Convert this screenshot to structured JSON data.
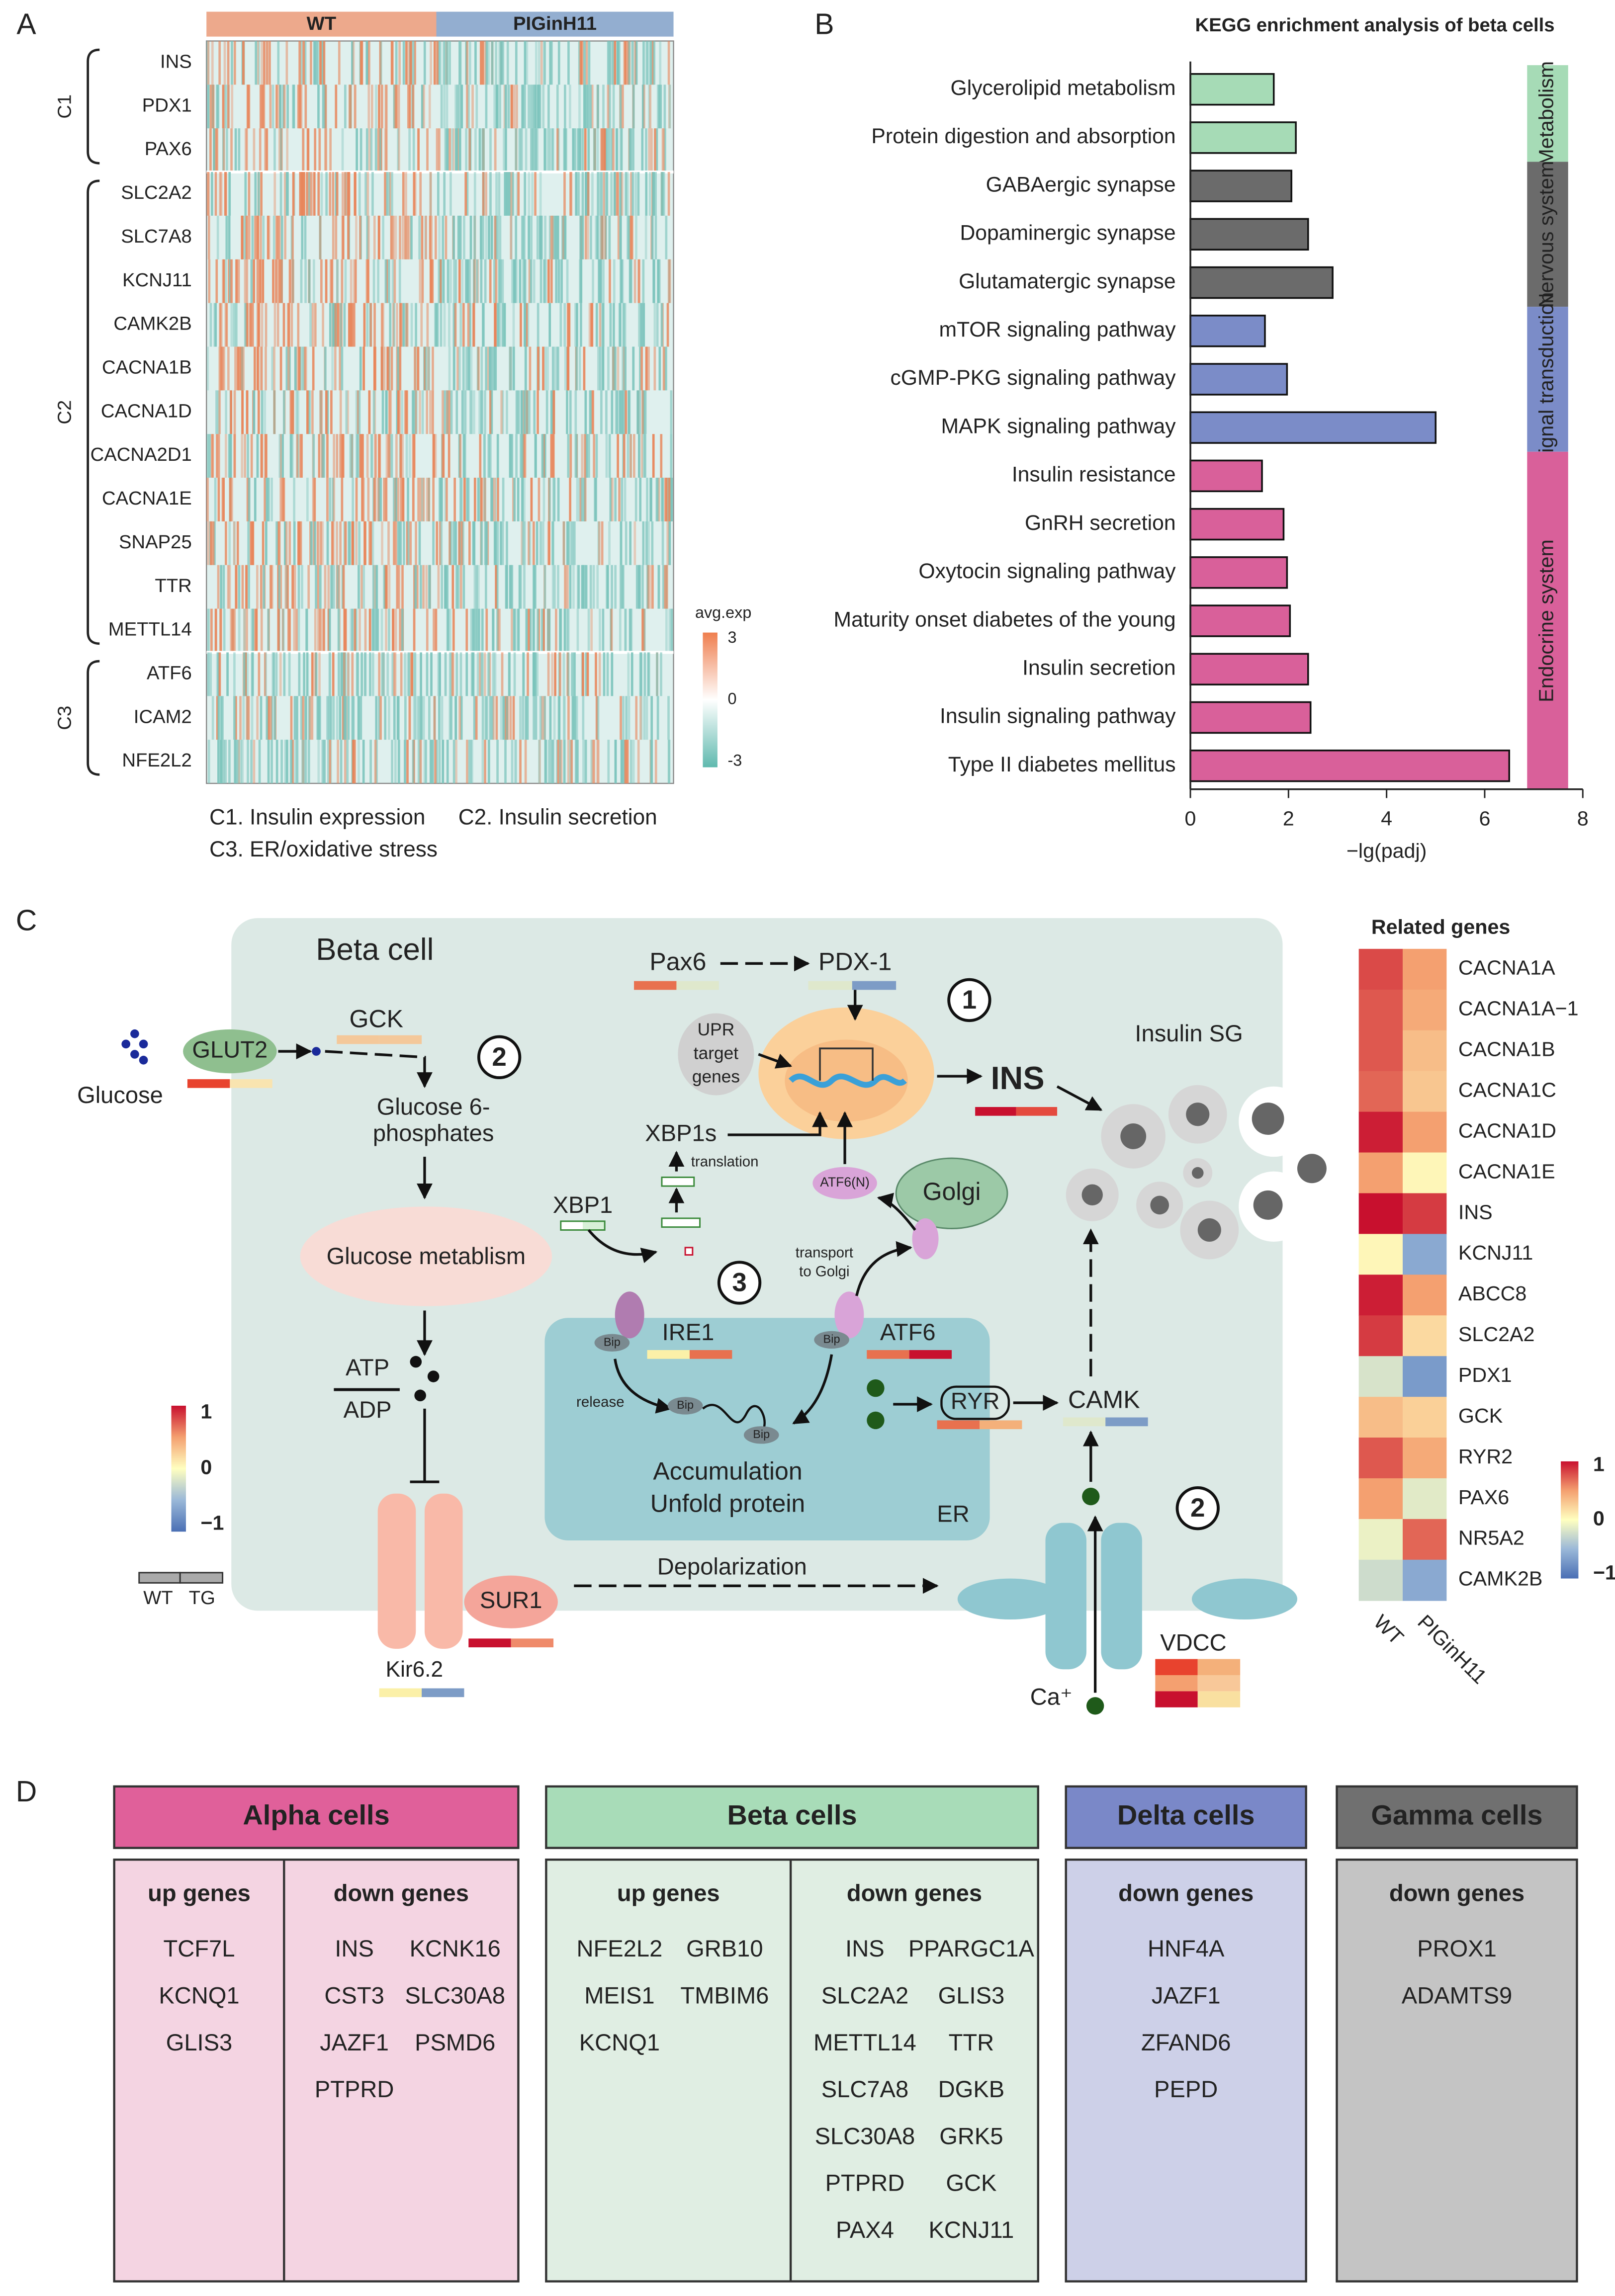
{
  "panel_a": {
    "label": "A",
    "groups": [
      {
        "name": "WT",
        "color": "#eda98c"
      },
      {
        "name": "PIGinH11",
        "color": "#93aed0"
      }
    ],
    "clusters": [
      {
        "name": "C1",
        "genes": [
          "INS",
          "PDX1",
          "PAX6"
        ]
      },
      {
        "name": "C2",
        "genes": [
          "SLC2A2",
          "SLC7A8",
          "KCNJ11",
          "CAMK2B",
          "CACNA1B",
          "CACNA1D",
          "CACNA2D1",
          "CACNA1E",
          "SNAP25",
          "TTR",
          "METTL14"
        ]
      },
      {
        "name": "C3",
        "genes": [
          "ATF6",
          "ICAM2",
          "NFE2L2"
        ]
      }
    ],
    "legend": {
      "title": "avg.exp",
      "ticks": [
        3,
        0,
        -3
      ]
    },
    "notes": [
      "C1. Insulin expression",
      "C2. Insulin secretion",
      "C3. ER/oxidative stress"
    ]
  },
  "chart_data": {
    "type": "bar",
    "orientation": "horizontal",
    "label": "B",
    "title": "KEGG enrichment analysis of beta cells",
    "categories": [
      "Glycerolipid metabolism",
      "Protein digestion and absorption",
      "GABAergic synapse",
      "Dopaminergic synapse",
      "Glutamatergic synapse",
      "mTOR signaling pathway",
      "cGMP-PKG signaling pathway",
      "MAPK signaling pathway",
      "Insulin resistance",
      "GnRH secretion",
      "Oxytocin signaling pathway",
      "Maturity onset diabetes of the young",
      "Insulin secretion",
      "Insulin signaling pathway",
      "Type II diabetes mellitus"
    ],
    "series": [
      {
        "name": "Metabolism",
        "color": "#a6dbb6",
        "values": [
          1.7,
          2.15,
          null,
          null,
          null,
          null,
          null,
          null,
          null,
          null,
          null,
          null,
          null,
          null,
          null
        ]
      },
      {
        "name": "Nervous system",
        "color": "#6b6b6b",
        "values": [
          null,
          null,
          2.06,
          2.4,
          2.9,
          null,
          null,
          null,
          null,
          null,
          null,
          null,
          null,
          null,
          null
        ]
      },
      {
        "name": "Signal transduction",
        "color": "#7b8cc8",
        "values": [
          null,
          null,
          null,
          null,
          null,
          1.52,
          1.97,
          5.0,
          null,
          null,
          null,
          null,
          null,
          null,
          null
        ]
      },
      {
        "name": "Endocrine system",
        "color": "#d9609a",
        "values": [
          null,
          null,
          null,
          null,
          null,
          null,
          null,
          null,
          1.46,
          1.9,
          1.97,
          2.03,
          2.4,
          2.45,
          6.5
        ]
      }
    ],
    "x_label": "−lg(padj)",
    "xlim": [
      0,
      8
    ],
    "xticks": [
      0,
      2,
      4,
      6,
      8
    ]
  },
  "panel_c": {
    "label": "C",
    "cell": "Beta cell",
    "glucose": "Glucose",
    "glut2": "GLUT2",
    "gck": "GCK",
    "g6p": [
      "Glucose 6-",
      "phosphates"
    ],
    "metabolism": "Glucose metablism",
    "atp": "ATP",
    "adp": "ADP",
    "kir": "Kir6.2",
    "sur1": "SUR1",
    "depolarization": "Depolarization",
    "vdcc": "VDCC",
    "ca": "Ca⁺",
    "pax6": "Pax6",
    "pdx1": "PDX-1",
    "upr": [
      "UPR",
      "target",
      "genes"
    ],
    "ins": "INS",
    "sg": "Insulin SG",
    "xbp1s": "XBP1s",
    "translation": "translation",
    "xbp1": "XBP1",
    "atf6n": "ATF6(N)",
    "golgi": "Golgi",
    "transport": [
      "transport",
      "to Golgi"
    ],
    "ire1": "IRE1",
    "atf6": "ATF6",
    "bip": "Bip",
    "release": "release",
    "accumulation": [
      "Accumulation",
      "Unfold protein"
    ],
    "er": "ER",
    "ryr": "RYR",
    "camk": "CAMK",
    "steps": [
      "1",
      "2",
      "3",
      "2"
    ],
    "legend": {
      "ticks": [
        1,
        0,
        {
          "value": -1,
          "label": "−1"
        }
      ],
      "groups": [
        "WT",
        "TG"
      ]
    },
    "related": {
      "title": "Related genes",
      "columns": [
        "WT",
        "PIGinH11"
      ],
      "genes": [
        "CACNA1A",
        "CACNA1A−1",
        "CACNA1B",
        "CACNA1C",
        "CACNA1D",
        "CACNA1E",
        "INS",
        "KCNJ11",
        "ABCC8",
        "SLC2A2",
        "PDX1",
        "GCK",
        "RYR2",
        "PAX6",
        "NR5A2",
        "CAMK2B"
      ],
      "values": [
        [
          0.8,
          0.5
        ],
        [
          0.75,
          0.45
        ],
        [
          0.75,
          0.35
        ],
        [
          0.7,
          0.3
        ],
        [
          0.95,
          0.5
        ],
        [
          0.5,
          0.05
        ],
        [
          1,
          0.85
        ],
        [
          0.05,
          -0.6
        ],
        [
          0.95,
          0.5
        ],
        [
          0.85,
          0.2
        ],
        [
          -0.2,
          -0.7
        ],
        [
          0.35,
          0.25
        ],
        [
          0.75,
          0.45
        ],
        [
          0.5,
          -0.15
        ],
        [
          -0.1,
          0.7
        ],
        [
          -0.25,
          -0.6
        ]
      ],
      "ticks": [
        1,
        0,
        {
          "value": -1,
          "label": "−1"
        }
      ]
    }
  },
  "panel_d": {
    "label": "D",
    "cards": [
      {
        "title": "Alpha cells",
        "color": "#e0609a",
        "body": "#f4d4e2",
        "columns": [
          {
            "heading": "up genes",
            "genes": [
              "TCF7L",
              "KCNQ1",
              "GLIS3"
            ]
          },
          {
            "heading": "down genes",
            "genes": [
              "INS",
              "KCNK16",
              "CST3",
              "SLC30A8",
              "JAZF1",
              "PSMD6",
              "PTPRD"
            ]
          }
        ]
      },
      {
        "title": "Beta cells",
        "color": "#a8dcb8",
        "body": "#e0eee3",
        "columns": [
          {
            "heading": "up genes",
            "genes": [
              "NFE2L2",
              "GRB10",
              "MEIS1",
              "TMBIM6",
              "KCNQ1"
            ]
          },
          {
            "heading": "down genes",
            "genes": [
              "INS",
              "PPARGC1A",
              "SLC2A2",
              "GLIS3",
              "METTL14",
              "TTR",
              "SLC7A8",
              "DGKB",
              "SLC30A8",
              "GRK5",
              "PTPRD",
              "GCK",
              "PAX4",
              "KCNJ11"
            ]
          }
        ]
      },
      {
        "title": "Delta cells",
        "color": "#7a88c8",
        "body": "#cdd0e8",
        "columns": [
          {
            "heading": "down genes",
            "genes": [
              "HNF4A",
              "JAZF1",
              "ZFAND6",
              "PEPD"
            ]
          }
        ]
      },
      {
        "title": "Gamma cells",
        "color": "#707070",
        "body": "#c4c4c4",
        "columns": [
          {
            "heading": "down genes",
            "genes": [
              "PROX1",
              "ADAMTS9"
            ]
          }
        ]
      }
    ]
  }
}
